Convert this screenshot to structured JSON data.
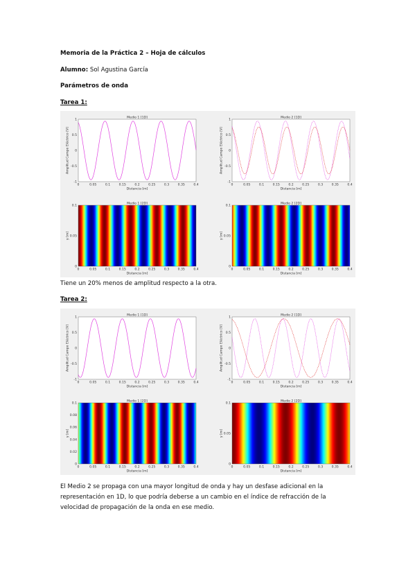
{
  "header": {
    "title": "Memoria de la Práctica 2 – Hoja de cálculos",
    "student_label": "Alumno:",
    "student_name": "Sol Agustina García",
    "subtitle": "Parámetros de onda"
  },
  "sections": [
    {
      "heading": "Tarea 1:",
      "figure": {
        "panels": [
          {
            "title": "Medio 1 [1D]",
            "xlabel": "Distancia [m]",
            "ylabel": "Amplitud Campo Eléctrico [V]",
            "xticks": [
              "0",
              "0.05",
              "0.1",
              "0.15",
              "0.2",
              "0.25",
              "0.3",
              "0.35",
              "0.4"
            ],
            "yticks": [
              "1",
              "0.5",
              "0",
              "-0.5",
              "-1"
            ]
          },
          {
            "title": "Medio 2 [1D]",
            "xlabel": "Distancia [m]",
            "ylabel": "Amplitud Campo Eléctrico [V]",
            "xticks": [
              "0",
              "0.05",
              "0.1",
              "0.15",
              "0.2",
              "0.25",
              "0.3",
              "0.35",
              "0.4"
            ],
            "yticks": [
              "1",
              "0.5",
              "0",
              "-0.5",
              "-1"
            ]
          },
          {
            "title": "Medio 1 [2D]",
            "xlabel": "Distancia [m]",
            "ylabel": "y [m]",
            "xticks": [
              "0",
              "0.05",
              "0.1",
              "0.15",
              "0.2",
              "0.25",
              "0.3",
              "0.35",
              "0.4"
            ],
            "yticks": [
              "0.1",
              "0.05",
              "0"
            ]
          },
          {
            "title": "Medio 2 [2D]",
            "xlabel": "Distancia [m]",
            "ylabel": "y [m]",
            "xticks": [
              "0",
              "0.05",
              "0.1",
              "0.15",
              "0.2",
              "0.25",
              "0.3",
              "0.35",
              "0.4"
            ],
            "yticks": [
              "0.1",
              "0.05",
              "0"
            ]
          }
        ]
      },
      "text": [
        "Tiene un 20% menos de amplitud respecto a la otra."
      ]
    },
    {
      "heading": "Tarea 2:",
      "figure": {
        "panels": [
          {
            "title": "Medio 1 [1D]",
            "xlabel": "Distancia [m]",
            "ylabel": "Amplitud Campo Eléctrico [V]",
            "xticks": [
              "0",
              "0.05",
              "0.1",
              "0.15",
              "0.2",
              "0.25",
              "0.3",
              "0.35",
              "0.4"
            ],
            "yticks": [
              "1",
              "0.5",
              "0",
              "-0.5",
              "-1"
            ]
          },
          {
            "title": "Medio 2 [1D]",
            "xlabel": "Distancia [m]",
            "ylabel": "Amplitud Campo Eléctrico [V]",
            "xticks": [
              "0",
              "0.05",
              "0.1",
              "0.15",
              "0.2",
              "0.25",
              "0.3",
              "0.35",
              "0.4"
            ],
            "yticks": [
              "1",
              "0.5",
              "0",
              "-0.5",
              "-1"
            ]
          },
          {
            "title": "Medio 1 [2D]",
            "xlabel": "Distancia [m]",
            "ylabel": "y [m]",
            "xticks": [
              "0",
              "0.05",
              "0.1",
              "0.15",
              "0.2",
              "0.25",
              "0.3",
              "0.35",
              "0.4"
            ],
            "yticks": [
              "0.1",
              "0.08",
              "0.06",
              "0.04",
              "0.02",
              "0"
            ]
          },
          {
            "title": "Medio 2 [2D]",
            "xlabel": "Distancia [m]",
            "ylabel": "y [m]",
            "xticks": [
              "0",
              "0.05",
              "0.1",
              "0.15",
              "0.2",
              "0.25",
              "0.3",
              "0.35",
              "0.4"
            ],
            "yticks": [
              "0.1",
              "0.05",
              "0"
            ]
          }
        ]
      },
      "text": [
        "El Medio 2 se propaga con una mayor longitud de onda y hay un desfase adicional en la",
        "representación en 1D, lo que podría deberse a un cambio en el índice de refracción de la",
        "velocidad de propagación de la onda en ese medio."
      ]
    }
  ]
}
